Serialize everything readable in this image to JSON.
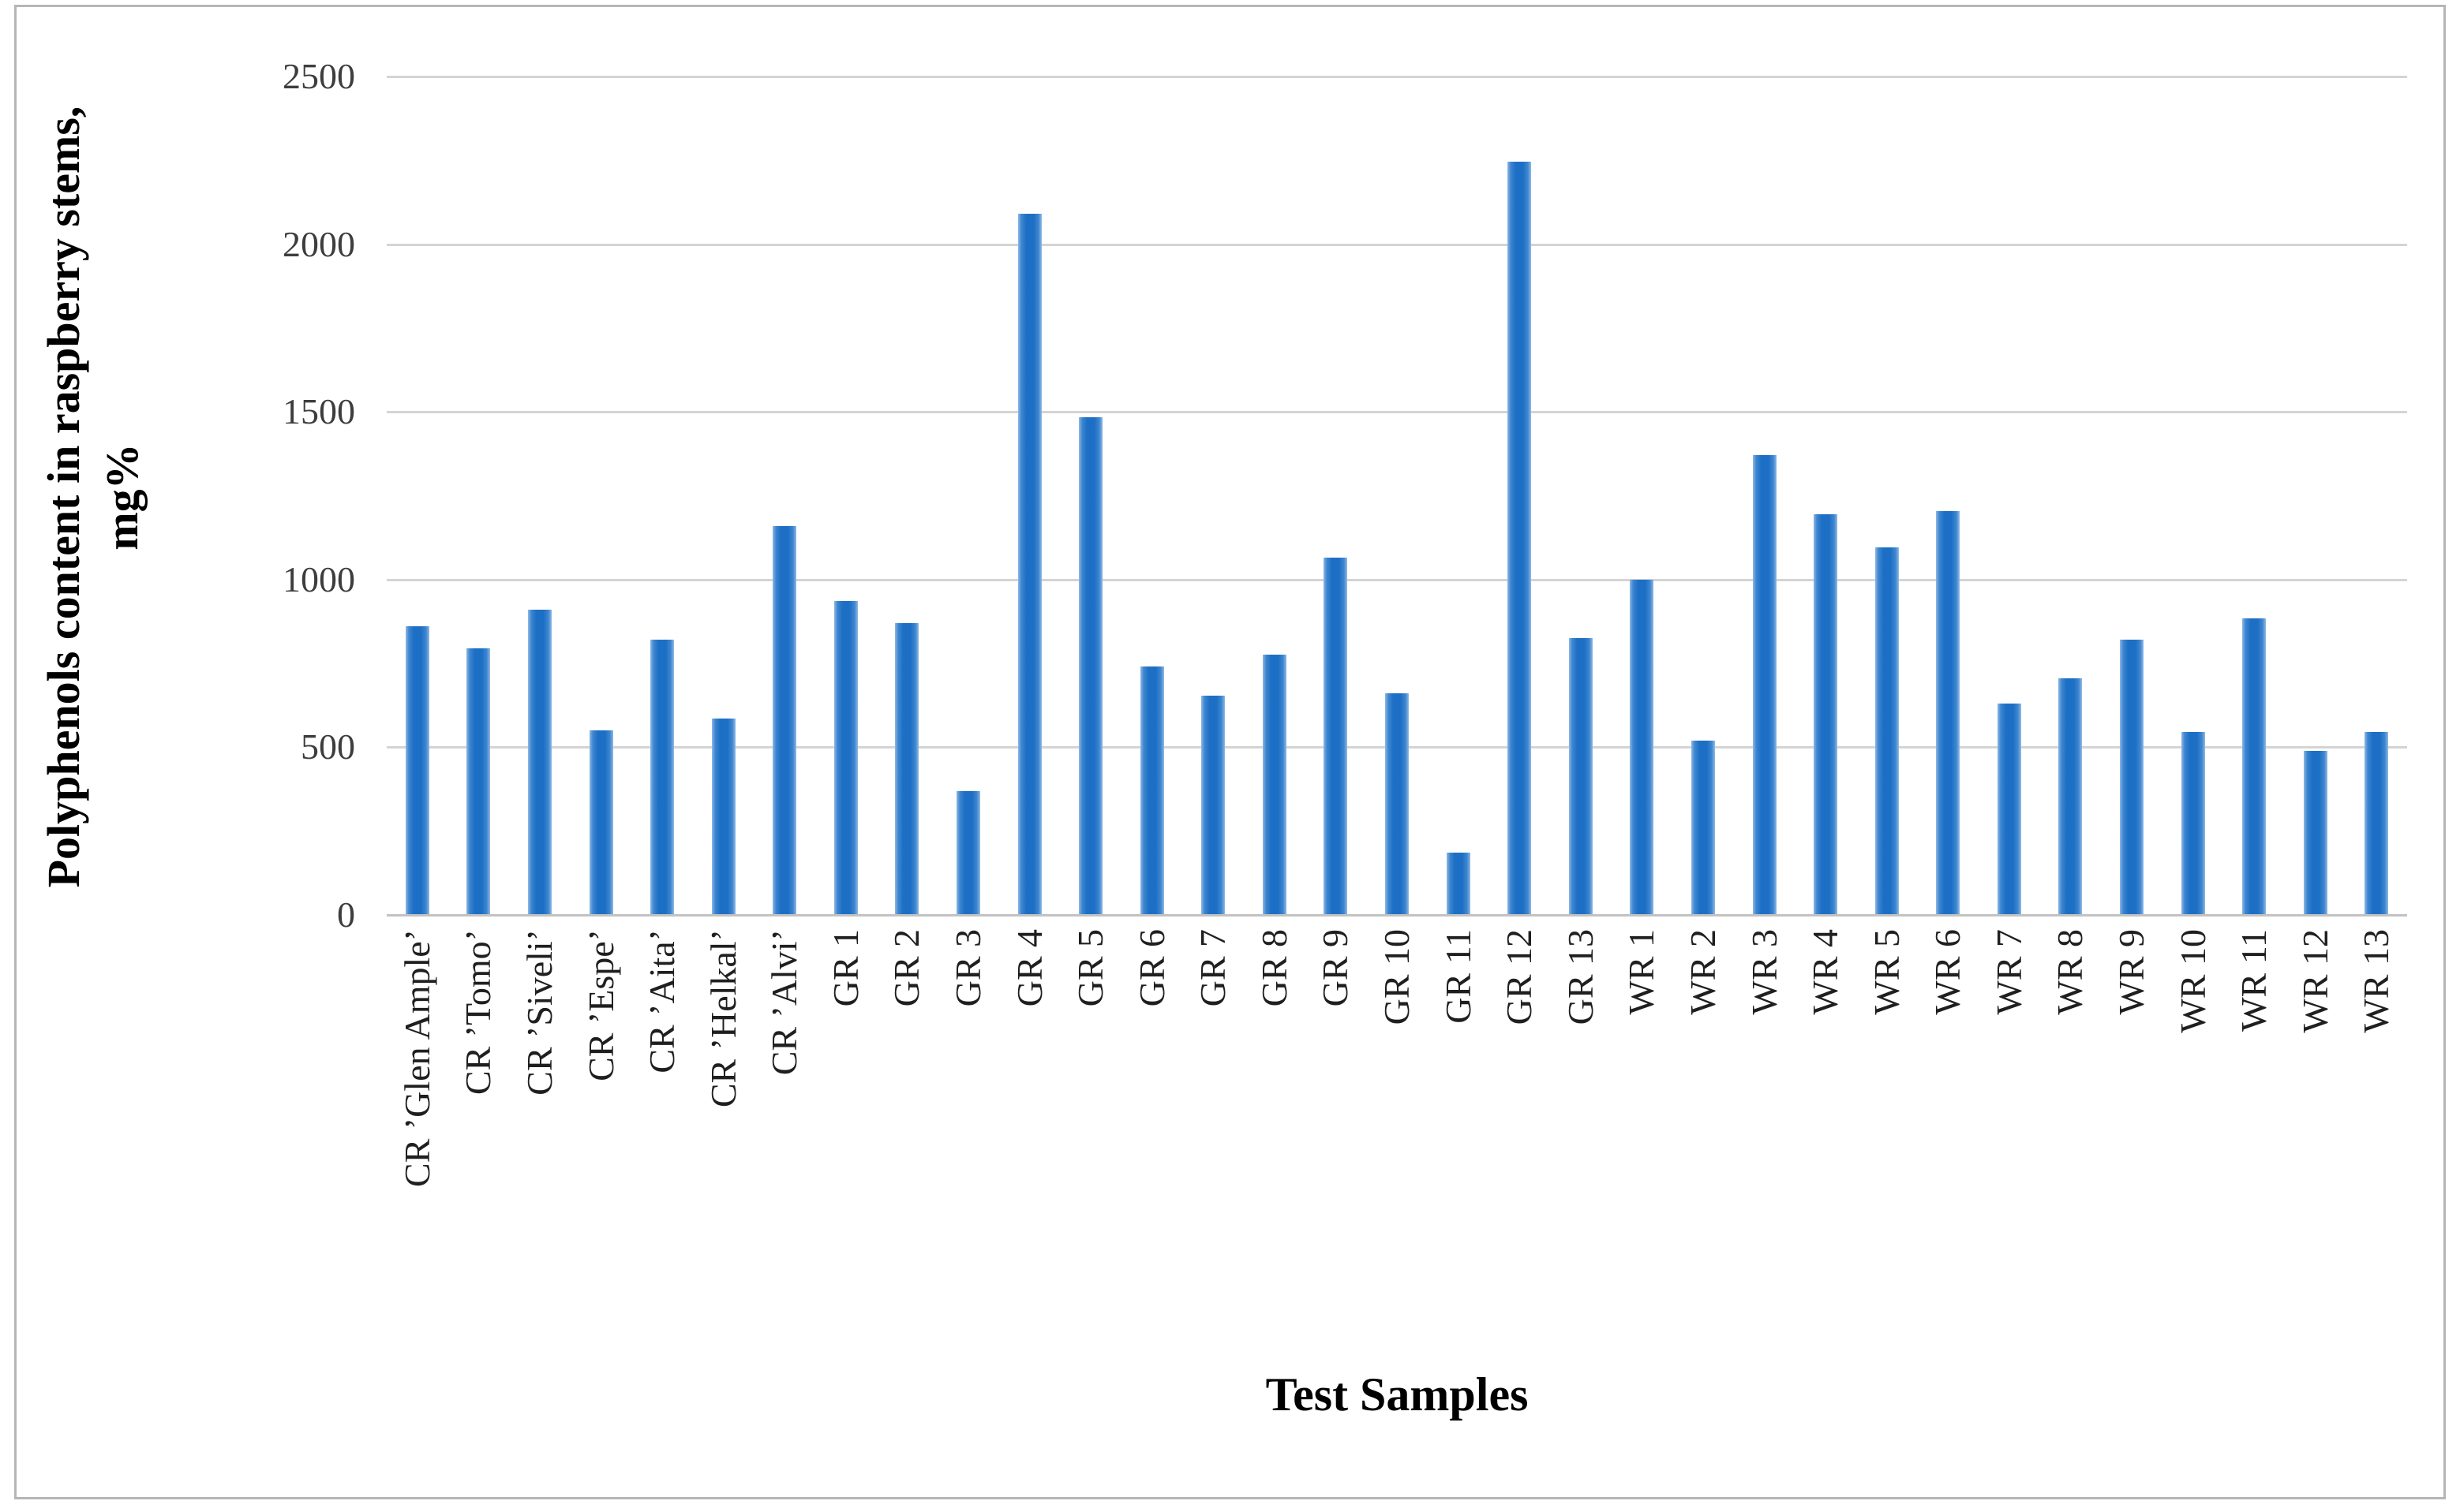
{
  "figure": {
    "background": "#ffffff",
    "border_color": "#b6b6b6"
  },
  "chart_data": {
    "type": "bar",
    "title": "",
    "xlabel": "Test Samples",
    "ylabel": "Polyphenols content in raspberry stems, mg%",
    "ylabel_line1": "Polyphenols content in raspberry stems,",
    "ylabel_line2": "mg%",
    "ylim": [
      0,
      2500
    ],
    "ytick_interval": 500,
    "yticks": [
      2500,
      2000,
      1500,
      1000,
      500,
      0
    ],
    "grid": "horizontal-only",
    "legend_position": "none",
    "bar_color": "#1C6FC4",
    "bar_edge_color": "#8FB9E4",
    "gridline_color": "#d4d4d4",
    "axis_line_color": "#c2c2c2",
    "tick_text_color": "#3d3d3d",
    "label_text_color": "#1f1f1f",
    "categories": [
      "CR ’Glen Ample’",
      "CR ’Tomo’",
      "CR ’Siveli’",
      "CR ’Espe’",
      "CR ’Aita’",
      "CR ’Helkal’",
      "CR ’Alvi’",
      "GR 1",
      "GR 2",
      "GR 3",
      "GR 4",
      "GR 5",
      "GR 6",
      "GR 7",
      "GR 8",
      "GR 9",
      "GR 10",
      "GR 11",
      "GR 12",
      "GR 13",
      "WR 1",
      "WR 2",
      "WR 3",
      "WR 4",
      "WR 5",
      "WR 6",
      "WR 7",
      "WR 8",
      "WR 9",
      "WR 10",
      "WR 11",
      "WR 12",
      "WR 13"
    ],
    "values": [
      860,
      795,
      910,
      550,
      820,
      585,
      1160,
      935,
      870,
      370,
      2090,
      1485,
      740,
      655,
      775,
      1065,
      660,
      185,
      2245,
      825,
      1000,
      520,
      1370,
      1195,
      1095,
      1205,
      630,
      705,
      820,
      545,
      885,
      490,
      545
    ]
  }
}
